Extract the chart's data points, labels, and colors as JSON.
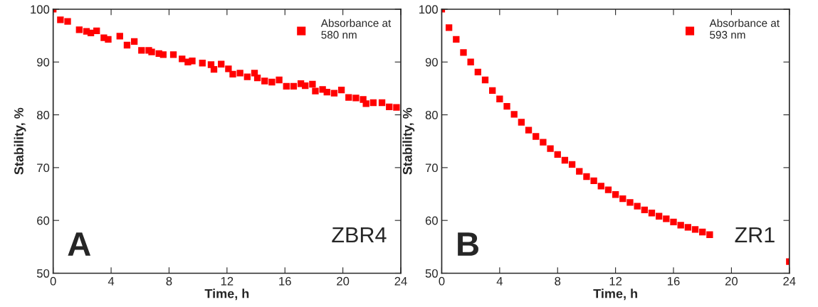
{
  "chart_data": [
    {
      "type": "scatter",
      "xlabel": "Time, h",
      "ylabel": "Stability, %",
      "xlim": [
        0,
        24
      ],
      "ylim": [
        50,
        100
      ],
      "xticks": [
        0,
        4,
        8,
        12,
        16,
        20,
        24
      ],
      "yticks": [
        50,
        60,
        70,
        80,
        90,
        100
      ],
      "marker": "square",
      "legend": "top right",
      "grid": false,
      "annotations": [
        "A",
        "ZBR4"
      ],
      "series": [
        {
          "name": "Absorbance at\n580 nm",
          "color": "#ff0000",
          "x": [
            0,
            0.5,
            1.0,
            1.8,
            2.3,
            2.6,
            3.0,
            3.5,
            3.8,
            4.6,
            5.1,
            5.6,
            6.1,
            6.6,
            6.8,
            7.3,
            7.6,
            8.3,
            8.9,
            9.3,
            9.6,
            10.3,
            10.9,
            11.1,
            11.6,
            12.1,
            12.4,
            12.9,
            13.4,
            13.9,
            14.1,
            14.6,
            15.1,
            15.6,
            16.1,
            16.6,
            17.1,
            17.4,
            17.9,
            18.1,
            18.6,
            18.9,
            19.4,
            19.9,
            20.4,
            20.9,
            21.4,
            21.6,
            22.1,
            22.7,
            23.2,
            23.7
          ],
          "values": [
            100,
            98.0,
            97.7,
            96.1,
            95.8,
            95.5,
            95.9,
            94.6,
            94.3,
            94.9,
            93.2,
            93.9,
            92.2,
            92.2,
            91.9,
            91.6,
            91.4,
            91.4,
            90.6,
            90.0,
            90.2,
            89.8,
            89.5,
            88.6,
            89.6,
            88.7,
            87.7,
            87.9,
            87.2,
            87.9,
            87.0,
            86.4,
            86.2,
            86.6,
            85.4,
            85.4,
            85.9,
            85.5,
            85.8,
            84.5,
            84.8,
            84.3,
            84.1,
            84.7,
            83.3,
            83.2,
            82.9,
            82.1,
            82.3,
            82.3,
            81.5,
            81.4
          ]
        }
      ]
    },
    {
      "type": "scatter",
      "xlabel": "Time, h",
      "ylabel": "Stability, %",
      "xlim": [
        0,
        24
      ],
      "ylim": [
        50,
        100
      ],
      "xticks": [
        0,
        4,
        8,
        12,
        16,
        20,
        24
      ],
      "yticks": [
        50,
        60,
        70,
        80,
        90,
        100
      ],
      "marker": "square",
      "legend": "top right",
      "grid": false,
      "annotations": [
        "B",
        "ZR1"
      ],
      "series": [
        {
          "name": "Absorbance at\n593 nm",
          "color": "#ff0000",
          "x": [
            0,
            0.5,
            1,
            1.5,
            2,
            2.5,
            3,
            3.5,
            4,
            4.5,
            5,
            5.5,
            6,
            6.5,
            7,
            7.5,
            8,
            8.5,
            9,
            9.5,
            10,
            10.5,
            11,
            11.5,
            12,
            12.5,
            13,
            13.5,
            14,
            14.5,
            15,
            15.5,
            16,
            16.5,
            17,
            17.5,
            18,
            18.5,
            24
          ],
          "values": [
            100,
            96.5,
            94.3,
            91.8,
            90.0,
            88.1,
            86.6,
            84.6,
            83.0,
            81.6,
            80.1,
            78.6,
            77.1,
            75.9,
            74.8,
            73.6,
            72.5,
            71.4,
            70.6,
            69.3,
            68.3,
            67.5,
            66.5,
            65.8,
            64.9,
            64.1,
            63.4,
            62.7,
            62.0,
            61.4,
            60.8,
            60.3,
            59.7,
            59.1,
            58.7,
            58.3,
            57.8,
            57.3,
            52.2
          ]
        }
      ]
    }
  ]
}
